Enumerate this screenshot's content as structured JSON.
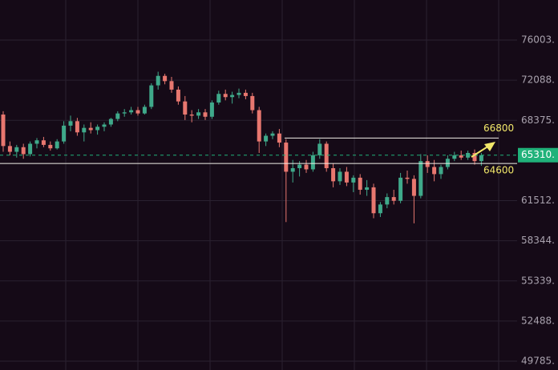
{
  "chart_data": {
    "type": "candlestick",
    "log_scale": true,
    "grid": true,
    "ylim": [
      49211,
      80122
    ],
    "yticks": [
      {
        "value": 76003,
        "label": "76003."
      },
      {
        "value": 72088,
        "label": "72088."
      },
      {
        "value": 68375,
        "label": "68375."
      },
      {
        "value": 61512,
        "label": "61512."
      },
      {
        "value": 58344,
        "label": "58344."
      },
      {
        "value": 55339,
        "label": "55339."
      },
      {
        "value": 52488,
        "label": "52488."
      },
      {
        "value": 49785,
        "label": "49785."
      }
    ],
    "up_color": "#3fa98a",
    "down_color": "#e8776f",
    "last_price": {
      "value": 65310,
      "label": "65310."
    },
    "last_price_color": "#20b27a",
    "levels": [
      66800,
      64600
    ],
    "level_label_color": "#f2e86a",
    "open": [
      68900,
      66100,
      65600,
      66000,
      65400,
      66300,
      66600,
      66200,
      65900,
      66500,
      67900,
      68300,
      67300,
      67700,
      67500,
      67800,
      68000,
      68500,
      69000,
      69100,
      69300,
      69000,
      69600,
      71600,
      72500,
      72000,
      71200,
      70100,
      68900,
      68800,
      69100,
      68700,
      70000,
      70800,
      70500,
      70700,
      70900,
      70600,
      69300,
      66500,
      67000,
      67200,
      66400,
      63900,
      64200,
      64500,
      64100,
      65300,
      66300,
      64200,
      63100,
      63900,
      63000,
      63400,
      62400,
      62600,
      60500,
      61200,
      61800,
      61500,
      63400,
      63300,
      61900,
      64800,
      64300,
      63700,
      64300,
      65000,
      65300,
      65100,
      65500,
      64800
    ],
    "high": [
      69200,
      66500,
      66200,
      66300,
      66500,
      66800,
      66900,
      66500,
      66700,
      68300,
      68800,
      68600,
      68000,
      68200,
      68000,
      68200,
      68600,
      69200,
      69400,
      69600,
      69600,
      69800,
      71800,
      72900,
      72700,
      72400,
      71500,
      70600,
      69300,
      69400,
      69400,
      70200,
      71100,
      71200,
      71000,
      71300,
      71200,
      70900,
      69600,
      67200,
      67400,
      67600,
      66700,
      64900,
      64800,
      64900,
      65600,
      66700,
      66500,
      64600,
      64200,
      64300,
      63600,
      63700,
      63200,
      62900,
      61400,
      62100,
      62400,
      63800,
      64000,
      63600,
      65400,
      65300,
      64900,
      64500,
      65300,
      65600,
      65700,
      65700,
      65800,
      65500
    ],
    "low": [
      65600,
      65300,
      65100,
      65000,
      65200,
      65900,
      66000,
      65700,
      65800,
      66300,
      67400,
      67000,
      66500,
      67200,
      67100,
      67400,
      67800,
      68300,
      68700,
      68900,
      68800,
      68900,
      69400,
      71200,
      71700,
      70900,
      69800,
      68400,
      68200,
      68500,
      68400,
      68500,
      69800,
      70200,
      69900,
      70400,
      70300,
      69000,
      65500,
      66100,
      66700,
      66000,
      59800,
      63000,
      63500,
      63800,
      63900,
      65000,
      63900,
      62600,
      62800,
      62700,
      62200,
      62000,
      61900,
      60100,
      60200,
      60900,
      61200,
      61300,
      62900,
      59700,
      61700,
      63800,
      63100,
      63300,
      64100,
      64800,
      64900,
      64900,
      64500,
      64400
    ],
    "close": [
      66100,
      65600,
      66000,
      65400,
      66300,
      66600,
      66200,
      65900,
      66500,
      67900,
      68300,
      67300,
      67700,
      67500,
      67800,
      68000,
      68500,
      69000,
      69100,
      69300,
      69000,
      69600,
      71600,
      72500,
      72000,
      71200,
      70100,
      68900,
      68800,
      69100,
      68700,
      70000,
      70800,
      70500,
      70700,
      70900,
      70600,
      69300,
      66500,
      67000,
      67200,
      66400,
      63900,
      64200,
      64500,
      64100,
      65300,
      66300,
      64200,
      63100,
      63900,
      63000,
      63400,
      62400,
      62600,
      60500,
      61200,
      61800,
      61500,
      63400,
      63300,
      61900,
      64800,
      64300,
      63700,
      64300,
      65000,
      65300,
      65100,
      65500,
      64800,
      65310
    ]
  }
}
